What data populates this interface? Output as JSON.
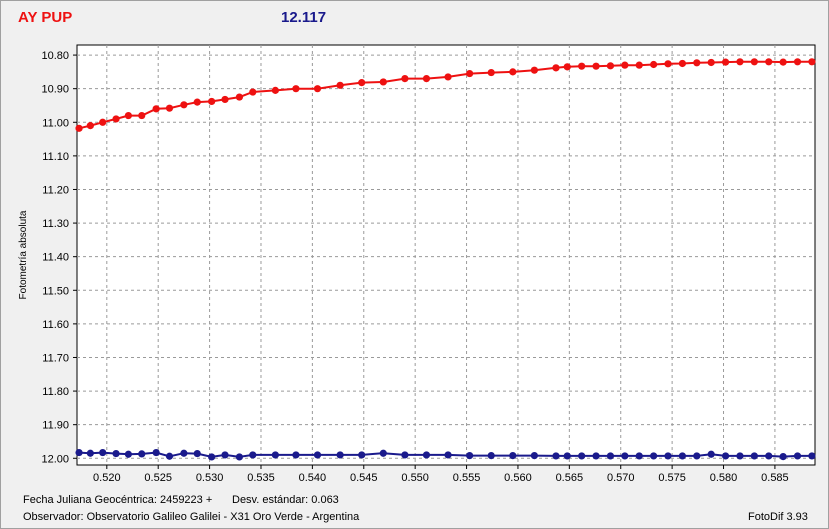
{
  "header": {
    "star_name": "AY PUP",
    "comparison_mag": "12.117"
  },
  "footer": {
    "jd_label": "Fecha Juliana Geocéntrica: 2459223 +",
    "stddev_label": "Desv. estándar: 0.063",
    "observer_label": "Observador: Observatorio Galileo Galilei - X31 Oro Verde - Argentina",
    "software_label": "FotoDif 3.93"
  },
  "colors": {
    "series_red": "#ee1111",
    "series_blue": "#1a1a8c",
    "grid": "#9a9a9a",
    "plot_bg": "#ffffff"
  },
  "chart_data": {
    "type": "line",
    "title": "",
    "xlabel": "",
    "ylabel": "Fotometría absoluta",
    "xlim": [
      0.5171,
      0.5889
    ],
    "ylim": [
      12.02,
      10.77
    ],
    "y_inverted": true,
    "grid": true,
    "x_ticks": [
      "0.520",
      "0.525",
      "0.530",
      "0.535",
      "0.540",
      "0.545",
      "0.550",
      "0.555",
      "0.560",
      "0.565",
      "0.570",
      "0.575",
      "0.580",
      "0.585"
    ],
    "y_ticks": [
      "10.80",
      "10.90",
      "11.00",
      "11.10",
      "11.20",
      "11.30",
      "11.40",
      "11.50",
      "11.60",
      "11.70",
      "11.80",
      "11.90",
      "12.00"
    ],
    "series": [
      {
        "color": "#ee1111",
        "x": [
          0.5173,
          0.5184,
          0.5196,
          0.5209,
          0.5221,
          0.5234,
          0.5248,
          0.5261,
          0.5275,
          0.5288,
          0.5302,
          0.5315,
          0.5329,
          0.5342,
          0.5364,
          0.5384,
          0.5405,
          0.5427,
          0.5448,
          0.5469,
          0.549,
          0.5511,
          0.5532,
          0.5553,
          0.5574,
          0.5595,
          0.5616,
          0.5637,
          0.5648,
          0.5662,
          0.5676,
          0.569,
          0.5704,
          0.5718,
          0.5732,
          0.5746,
          0.576,
          0.5774,
          0.5788,
          0.5802,
          0.5816,
          0.583,
          0.5844,
          0.5858,
          0.5872,
          0.5886
        ],
        "y": [
          11.018,
          11.01,
          11.0,
          10.99,
          10.98,
          10.98,
          10.96,
          10.958,
          10.948,
          10.94,
          10.938,
          10.932,
          10.925,
          10.91,
          10.905,
          10.9,
          10.9,
          10.89,
          10.882,
          10.88,
          10.87,
          10.87,
          10.865,
          10.855,
          10.852,
          10.85,
          10.845,
          10.838,
          10.835,
          10.833,
          10.833,
          10.832,
          10.83,
          10.83,
          10.828,
          10.826,
          10.825,
          10.823,
          10.822,
          10.821,
          10.82,
          10.82,
          10.82,
          10.821,
          10.82,
          10.82
        ]
      },
      {
        "color": "#1a1a8c",
        "x": [
          0.5173,
          0.5184,
          0.5196,
          0.5209,
          0.5221,
          0.5234,
          0.5248,
          0.5261,
          0.5275,
          0.5288,
          0.5302,
          0.5315,
          0.5329,
          0.5342,
          0.5364,
          0.5384,
          0.5405,
          0.5427,
          0.5448,
          0.5469,
          0.549,
          0.5511,
          0.5532,
          0.5553,
          0.5574,
          0.5595,
          0.5616,
          0.5637,
          0.5648,
          0.5662,
          0.5676,
          0.569,
          0.5704,
          0.5718,
          0.5732,
          0.5746,
          0.576,
          0.5774,
          0.5788,
          0.5802,
          0.5816,
          0.583,
          0.5844,
          0.5858,
          0.5872,
          0.5886
        ],
        "y": [
          11.983,
          11.985,
          11.983,
          11.986,
          11.988,
          11.987,
          11.983,
          11.994,
          11.985,
          11.986,
          11.996,
          11.99,
          11.996,
          11.99,
          11.99,
          11.99,
          11.99,
          11.99,
          11.99,
          11.985,
          11.99,
          11.99,
          11.99,
          11.992,
          11.992,
          11.992,
          11.992,
          11.993,
          11.993,
          11.993,
          11.993,
          11.993,
          11.993,
          11.993,
          11.993,
          11.993,
          11.993,
          11.993,
          11.988,
          11.993,
          11.993,
          11.993,
          11.993,
          11.995,
          11.993,
          11.993
        ]
      }
    ]
  }
}
